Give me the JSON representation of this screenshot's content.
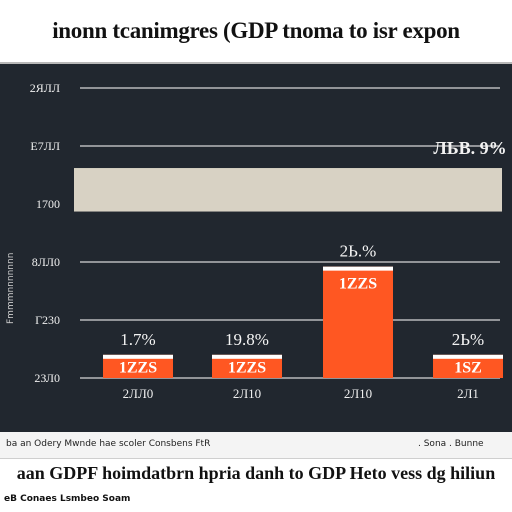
{
  "header": {
    "title": "inonn tcanimgres (GDP tnoma to isr expon"
  },
  "chart_data": {
    "type": "bar",
    "ylabel": "Fmmmnnnnnnn",
    "yticks": [
      "2ЯЛЛ",
      "Е7ЛЛ",
      "1700",
      "8ЛЛ0",
      "Г230",
      "2ЗЛ0"
    ],
    "categories": [
      "2ЛЛ0",
      "2Л10",
      "2Л10",
      "2Л1"
    ],
    "values": [
      0.4,
      0.4,
      1.92,
      0.4
    ],
    "bar_value_labels": [
      "1ZZS",
      "1ZZS",
      "1ZZS",
      "1SZ"
    ],
    "bar_top_labels": [
      "1.7%",
      "19.8%",
      "2Ь.%",
      "2Ь%"
    ],
    "band": {
      "start": 2.87,
      "end": 3.62,
      "label": "ЛЬВ. 9%"
    },
    "ylim": [
      0,
      5
    ],
    "grid": true,
    "bar_color": "#ff5722",
    "bar_highlight": "#ffffff",
    "band_color": "#d8d2c4"
  },
  "footer": {
    "source": "ba an Odery  Mwnde  hae  scoler  Consbens  FtR",
    "source_right": ". Sona  . Bunne"
  },
  "caption": {
    "text": "aan GDPF hoimdatbrn hpria danh to GDP Heto vess dg hiliun"
  },
  "bottom": {
    "text": "eB Conaes Lsmbeo Soam"
  }
}
